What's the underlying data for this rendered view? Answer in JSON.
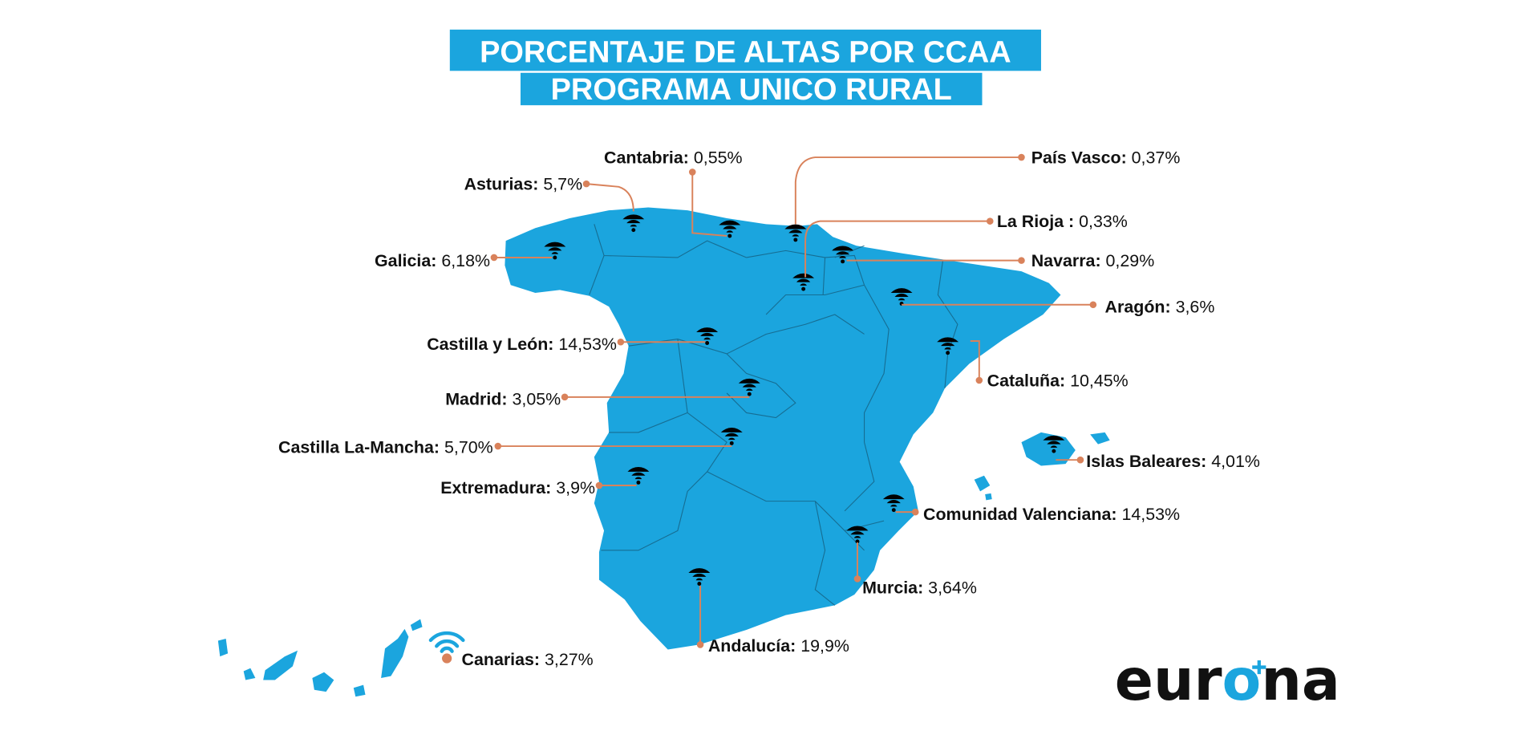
{
  "title": {
    "line1": "PORCENTAJE DE ALTAS POR CCAA",
    "line2": "PROGRAMA UNICO RURAL"
  },
  "colors": {
    "map": "#1ba5de",
    "title_bg": "#1ba5de",
    "leader": "#d9825b"
  },
  "regions": [
    {
      "name": "Cantabria:",
      "value": "0,55%"
    },
    {
      "name": "Asturias:",
      "value": "5,7%"
    },
    {
      "name": "País Vasco:",
      "value": "0,37%"
    },
    {
      "name": "La Rioja :",
      "value": "0,33%"
    },
    {
      "name": "Galicia:",
      "value": "6,18%"
    },
    {
      "name": "Navarra:",
      "value": "0,29%"
    },
    {
      "name": "Aragón:",
      "value": "3,6%"
    },
    {
      "name": "Castilla y León:",
      "value": "14,53%"
    },
    {
      "name": "Cataluña:",
      "value": "10,45%"
    },
    {
      "name": "Madrid:",
      "value": "3,05%"
    },
    {
      "name": "Castilla La-Mancha:",
      "value": "5,70%"
    },
    {
      "name": "Islas Baleares:",
      "value": "4,01%"
    },
    {
      "name": "Extremadura:",
      "value": "3,9%"
    },
    {
      "name": "Comunidad Valenciana:",
      "value": "14,53%"
    },
    {
      "name": "Murcia:",
      "value": "3,64%"
    },
    {
      "name": "Andalucía:",
      "value": "19,9%"
    },
    {
      "name": "Canarias:",
      "value": "3,27%"
    }
  ],
  "icon": "wifi-icon",
  "logo": {
    "text_before": "eur",
    "o": "o",
    "text_after": "na"
  }
}
